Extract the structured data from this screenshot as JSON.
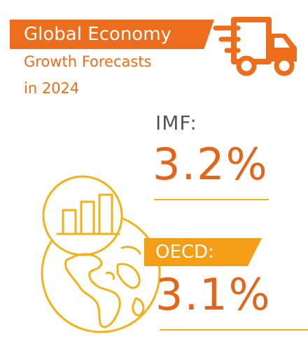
{
  "header": {
    "title": "Global Economy",
    "subtitle_line1": "Growth Forecasts",
    "subtitle_line2": "in 2024"
  },
  "forecasts": {
    "imf": {
      "label": "IMF:",
      "value": "3.2%"
    },
    "oecd": {
      "label": "OECD:",
      "value": "3.1%"
    }
  },
  "icons": {
    "header": "delivery-truck-icon",
    "main": "globe-bar-chart-icon"
  },
  "colors": {
    "orange": "#ec6d1b",
    "amber": "#f49d17",
    "yellow": "#f2b21a",
    "gray": "#555555"
  }
}
